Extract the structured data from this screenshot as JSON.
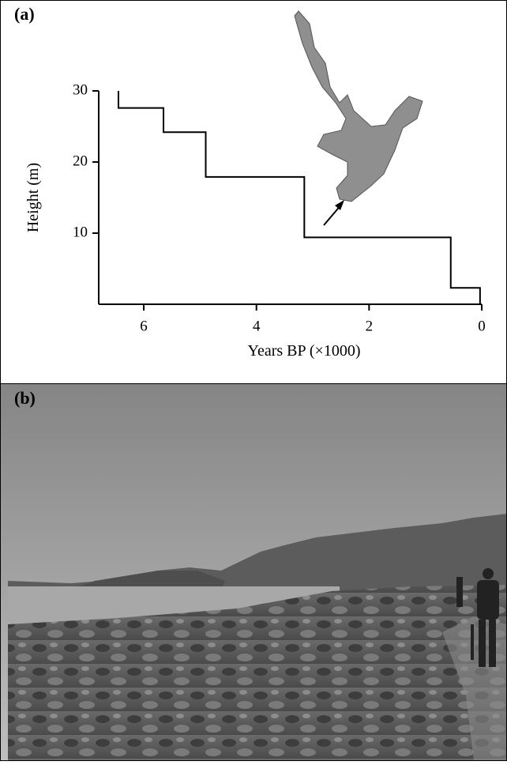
{
  "panel_a_label": "(a)",
  "chart_data": {
    "type": "line",
    "x": [
      6.45,
      6.45,
      5.65,
      5.65,
      4.9,
      4.9,
      3.15,
      3.15,
      0.55,
      0.55,
      0.03,
      0.03
    ],
    "values": [
      30,
      27.6,
      27.6,
      24.2,
      24.2,
      17.9,
      17.9,
      9.4,
      9.4,
      2.3,
      2.3,
      0
    ],
    "color": "#000000",
    "xlabel": "Years BP (×1000)",
    "ylabel": "Height (m)",
    "xlim": [
      6.8,
      0
    ],
    "ylim": [
      0,
      30
    ],
    "xticks": [
      6,
      4,
      2,
      0
    ],
    "yticks": [
      10,
      20,
      30
    ]
  },
  "panel_b_label": "(b)"
}
